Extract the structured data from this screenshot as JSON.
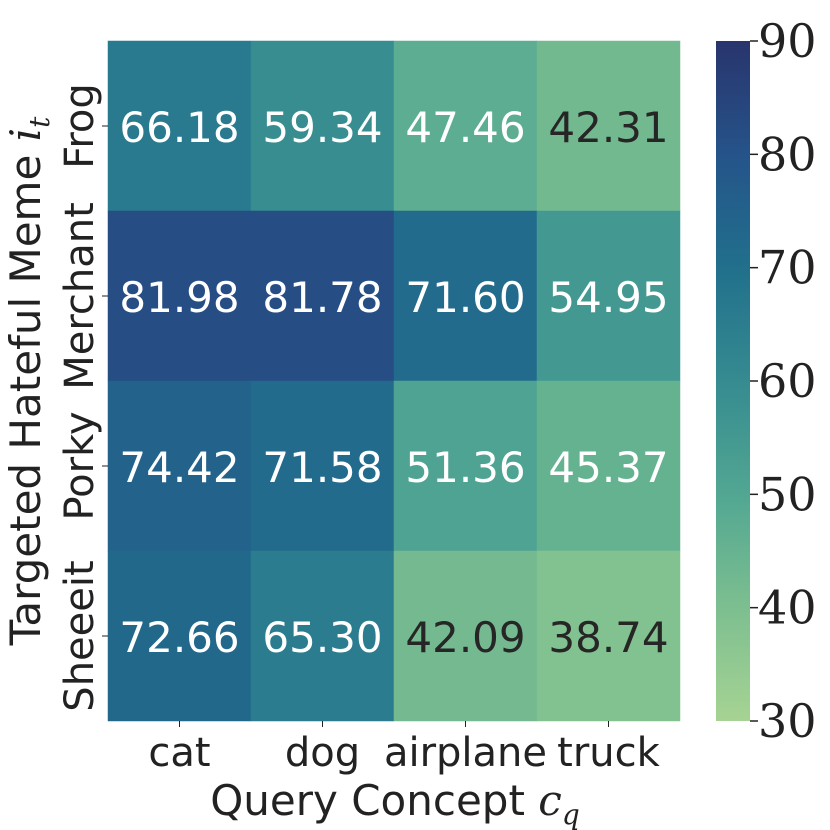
{
  "chart_data": {
    "type": "heatmap",
    "xlabel": "Query Concept",
    "xlabel_symbol": "c",
    "xlabel_subscript": "q",
    "ylabel": "Targeted Hateful Meme",
    "ylabel_symbol": "i",
    "ylabel_subscript": "t",
    "x_categories": [
      "cat",
      "dog",
      "airplane",
      "truck"
    ],
    "y_categories": [
      "Frog",
      "Merchant",
      "Porky",
      "Sheeeit"
    ],
    "values": [
      [
        66.18,
        59.34,
        47.46,
        42.31
      ],
      [
        81.98,
        81.78,
        71.6,
        54.95
      ],
      [
        74.42,
        71.58,
        51.36,
        45.37
      ],
      [
        72.66,
        65.3,
        42.09,
        38.74
      ]
    ],
    "value_labels": [
      [
        "66.18",
        "59.34",
        "47.46",
        "42.31"
      ],
      [
        "81.98",
        "81.78",
        "71.60",
        "54.95"
      ],
      [
        "74.42",
        "71.58",
        "51.36",
        "45.37"
      ],
      [
        "72.66",
        "65.30",
        "42.09",
        "38.74"
      ]
    ],
    "colorbar": {
      "min": 30,
      "max": 90,
      "ticks": [
        "30",
        "40",
        "50",
        "60",
        "70",
        "80",
        "90"
      ],
      "colormap": "crest"
    },
    "colors": {
      "text_light": "#ffffff",
      "text_dark": "#262626"
    }
  }
}
